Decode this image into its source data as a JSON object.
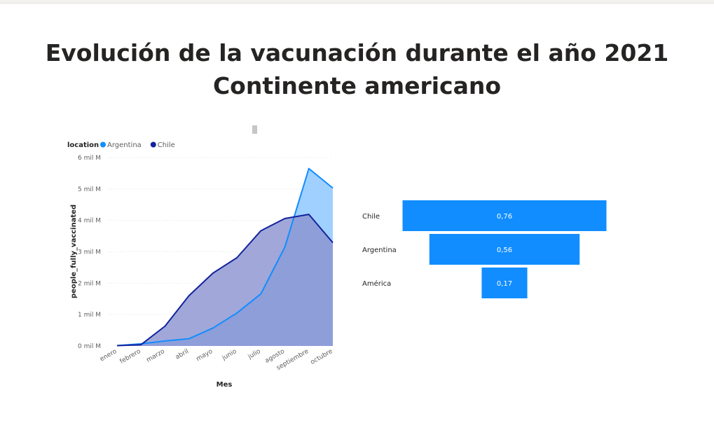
{
  "title": {
    "line1": "Evolución de la vacunación durante el año 2021",
    "line2": "Continente americano"
  },
  "chart_data": [
    {
      "type": "area",
      "legend_title": "location",
      "legend_position": "top-left",
      "xlabel": "Mes",
      "ylabel": "people_fully_vaccinated",
      "grid": true,
      "ylim": [
        0,
        6000000000
      ],
      "yticks": [
        {
          "value": 0,
          "label": "0 mil M"
        },
        {
          "value": 1000000000,
          "label": "1 mil M"
        },
        {
          "value": 2000000000,
          "label": "2 mil M"
        },
        {
          "value": 3000000000,
          "label": "3 mil M"
        },
        {
          "value": 4000000000,
          "label": "4 mil M"
        },
        {
          "value": 5000000000,
          "label": "5 mil M"
        },
        {
          "value": 6000000000,
          "label": "6 mil M"
        }
      ],
      "categories": [
        "enero",
        "febrero",
        "marzo",
        "abril",
        "mayo",
        "junio",
        "julio",
        "agosto",
        "septiembre",
        "octubre"
      ],
      "series": [
        {
          "name": "Argentina",
          "color": "#118dff",
          "fill": "#8ec8ff",
          "values": [
            10000000,
            70000000,
            160000000,
            230000000,
            570000000,
            1050000000,
            1660000000,
            3150000000,
            5650000000,
            5030000000
          ]
        },
        {
          "name": "Chile",
          "color": "#12239e",
          "fill": "#8a91d0",
          "values": [
            10000000,
            40000000,
            630000000,
            1600000000,
            2320000000,
            2810000000,
            3670000000,
            4060000000,
            4190000000,
            3290000000
          ]
        }
      ]
    },
    {
      "type": "funnel",
      "color": "#118dff",
      "categories": [
        "Chile",
        "Argentina",
        "América"
      ],
      "values": [
        0.76,
        0.56,
        0.17
      ],
      "labels": [
        "0,76",
        "0,56",
        "0,17"
      ]
    }
  ]
}
